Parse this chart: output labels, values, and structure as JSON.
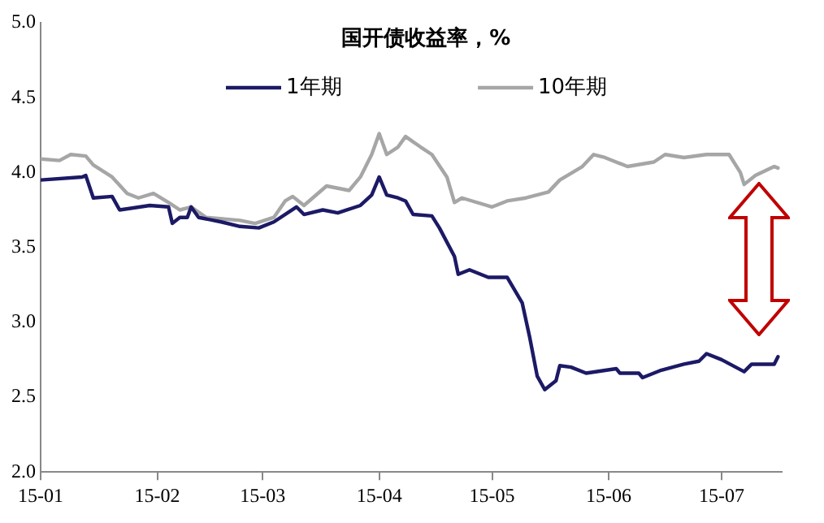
{
  "chart_data": {
    "type": "line",
    "title": "国开债收益率，%",
    "legend": "top",
    "line_style": "solid",
    "grid": false,
    "xlim": [
      "--01-01",
      "--07-17"
    ],
    "xticks": [
      {
        "value": "--01-01",
        "label": "15-01"
      },
      {
        "value": "--02-01",
        "label": "15-02"
      },
      {
        "value": "--03-01",
        "label": "15-03"
      },
      {
        "value": "--04-01",
        "label": "15-04"
      },
      {
        "value": "--05-01",
        "label": "15-05"
      },
      {
        "value": "--06-01",
        "label": "15-06"
      },
      {
        "value": "--07-01",
        "label": "15-07"
      }
    ],
    "ylim": [
      2.0,
      5.0
    ],
    "yticks": [
      {
        "value": 2.0,
        "label": "2.0"
      },
      {
        "value": 2.5,
        "label": "2.5"
      },
      {
        "value": 3.0,
        "label": "3.0"
      },
      {
        "value": 3.5,
        "label": "3.5"
      },
      {
        "value": 4.0,
        "label": "4.0"
      },
      {
        "value": 4.5,
        "label": "4.5"
      },
      {
        "value": 5.0,
        "label": "5.0"
      }
    ],
    "series": [
      {
        "name": "1年期",
        "color": "#1c1a66",
        "x": [
          "--01-01",
          "--01-12",
          "--01-13",
          "--01-15",
          "--01-20",
          "--01-22",
          "--01-30",
          "--02-04",
          "--02-05",
          "--02-07",
          "--02-09",
          "--02-10",
          "--02-12",
          "--02-18",
          "--02-23",
          "--02-28",
          "--03-04",
          "--03-10",
          "--03-12",
          "--03-17",
          "--03-21",
          "--03-27",
          "--03-30",
          "--04-01",
          "--04-03",
          "--04-06",
          "--04-08",
          "--04-10",
          "--04-15",
          "--04-17",
          "--04-21",
          "--04-22",
          "--04-25",
          "--04-30",
          "--05-05",
          "--05-09",
          "--05-11",
          "--05-13",
          "--05-15",
          "--05-18",
          "--05-19",
          "--05-22",
          "--05-26",
          "--06-03",
          "--06-04",
          "--06-09",
          "--06-10",
          "--06-15",
          "--06-21",
          "--06-25",
          "--06-27",
          "--07-01",
          "--07-07",
          "--07-09",
          "--07-15",
          "--07-16"
        ],
        "values": [
          3.95,
          3.97,
          3.98,
          3.83,
          3.84,
          3.75,
          3.78,
          3.77,
          3.66,
          3.7,
          3.7,
          3.77,
          3.7,
          3.67,
          3.64,
          3.63,
          3.67,
          3.77,
          3.72,
          3.75,
          3.73,
          3.78,
          3.85,
          3.97,
          3.85,
          3.83,
          3.81,
          3.72,
          3.71,
          3.63,
          3.44,
          3.32,
          3.35,
          3.3,
          3.3,
          3.13,
          2.9,
          2.64,
          2.55,
          2.61,
          2.71,
          2.7,
          2.66,
          2.69,
          2.66,
          2.66,
          2.63,
          2.68,
          2.72,
          2.74,
          2.79,
          2.75,
          2.67,
          2.72,
          2.72,
          2.77
        ]
      },
      {
        "name": "10年期",
        "color": "#a6a6a6",
        "x": [
          "--01-01",
          "--01-06",
          "--01-09",
          "--01-13",
          "--01-15",
          "--01-20",
          "--01-24",
          "--01-27",
          "--01-31",
          "--02-04",
          "--02-07",
          "--02-10",
          "--02-14",
          "--02-23",
          "--02-27",
          "--03-04",
          "--03-07",
          "--03-09",
          "--03-12",
          "--03-18",
          "--03-24",
          "--03-27",
          "--03-30",
          "--04-01",
          "--04-03",
          "--04-06",
          "--04-08",
          "--04-12",
          "--04-15",
          "--04-19",
          "--04-21",
          "--04-23",
          "--05-01",
          "--05-05",
          "--05-10",
          "--05-16",
          "--05-19",
          "--05-25",
          "--05-28",
          "--05-31",
          "--06-06",
          "--06-13",
          "--06-16",
          "--06-21",
          "--06-27",
          "--07-03",
          "--07-06",
          "--07-07",
          "--07-10",
          "--07-15",
          "--07-16"
        ],
        "values": [
          4.09,
          4.08,
          4.12,
          4.11,
          4.05,
          3.97,
          3.86,
          3.83,
          3.86,
          3.8,
          3.75,
          3.77,
          3.7,
          3.68,
          3.66,
          3.7,
          3.81,
          3.84,
          3.78,
          3.91,
          3.88,
          3.97,
          4.12,
          4.26,
          4.12,
          4.17,
          4.24,
          4.17,
          4.12,
          3.97,
          3.8,
          3.83,
          3.77,
          3.81,
          3.83,
          3.87,
          3.95,
          4.04,
          4.12,
          4.1,
          4.04,
          4.07,
          4.12,
          4.1,
          4.12,
          4.12,
          4.0,
          3.92,
          3.98,
          4.04,
          4.03
        ]
      }
    ]
  }
}
